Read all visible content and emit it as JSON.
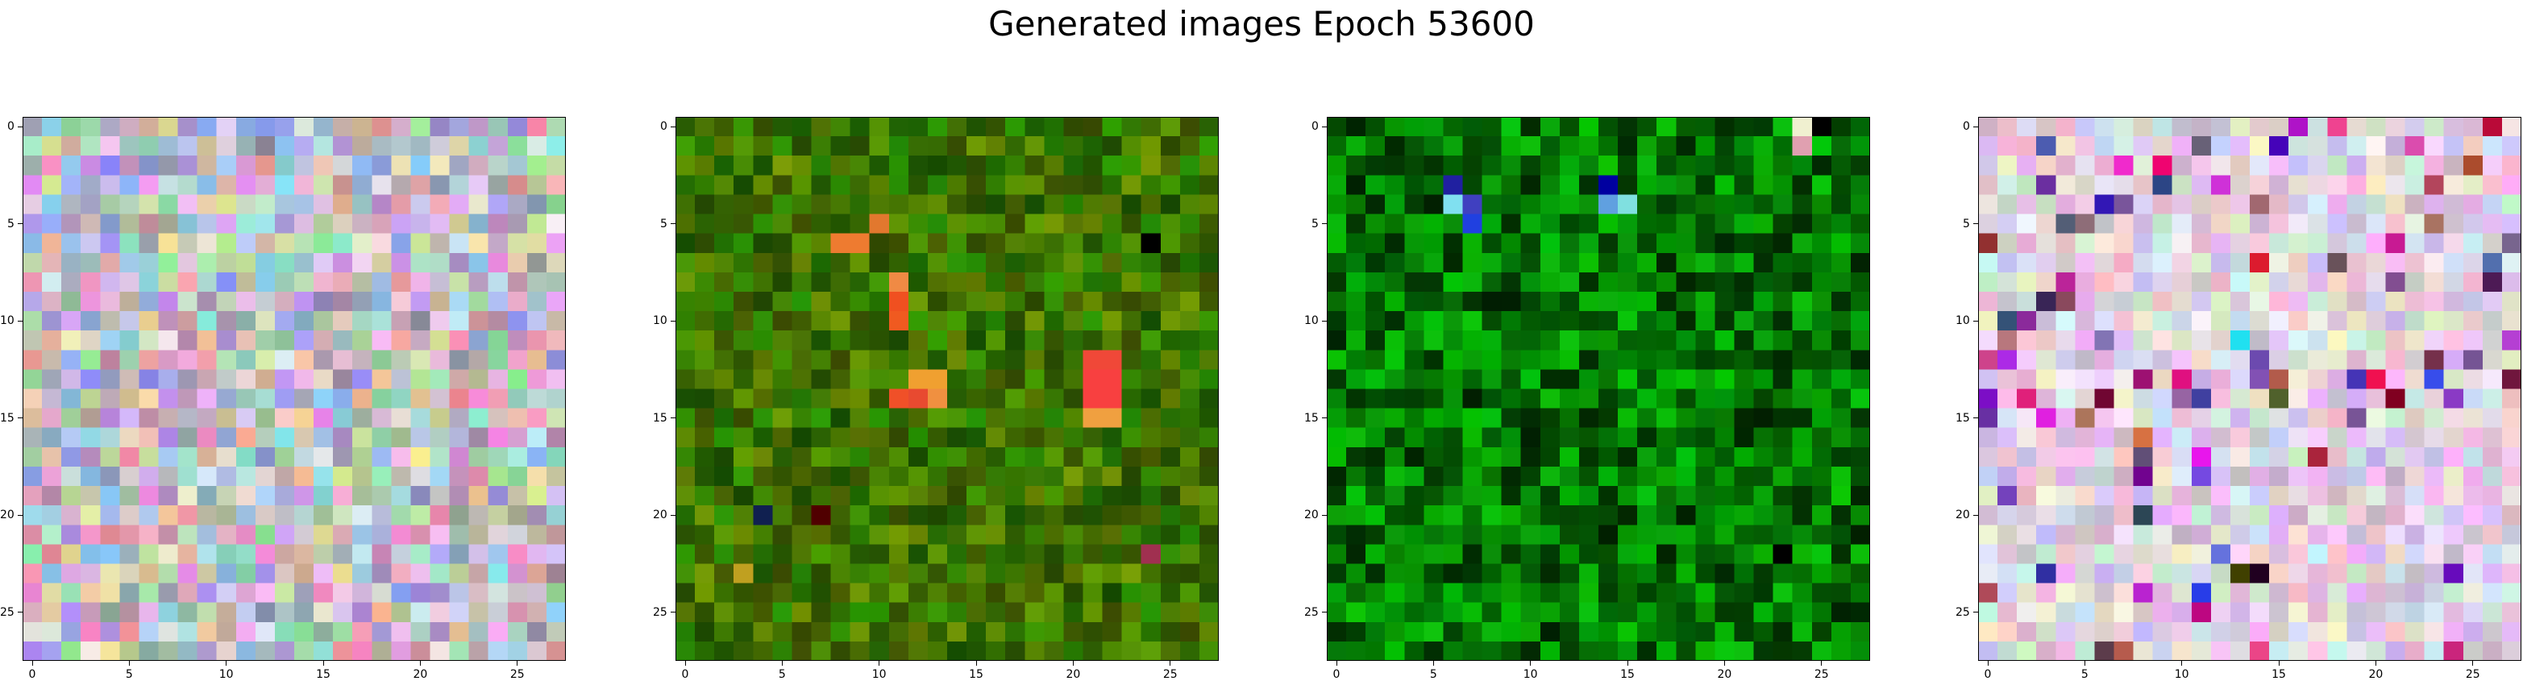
{
  "figure": {
    "title": "Generated images Epoch 53600"
  },
  "chart_data": [
    {
      "type": "heatmap",
      "name": "generated-image-1",
      "grid": [
        28,
        28
      ],
      "xlim": [
        -0.5,
        27.5
      ],
      "ylim": [
        27.5,
        -0.5
      ],
      "xticks": [
        0,
        5,
        10,
        15,
        20,
        25
      ],
      "yticks": [
        0,
        5,
        10,
        15,
        20,
        25
      ],
      "palette": "pastel-noise",
      "base_color": "#b4aac8",
      "seed": 11
    },
    {
      "type": "heatmap",
      "name": "generated-image-2",
      "grid": [
        28,
        28
      ],
      "xlim": [
        -0.5,
        27.5
      ],
      "ylim": [
        27.5,
        -0.5
      ],
      "xticks": [
        0,
        5,
        10,
        15,
        20,
        25
      ],
      "yticks": [
        0,
        5,
        10,
        15,
        20,
        25
      ],
      "palette": "olive-green",
      "base_color": "#3c7a10",
      "seed": 23,
      "highlights": [
        {
          "x": 8,
          "y": 6,
          "color": "#ee7b30"
        },
        {
          "x": 9,
          "y": 6,
          "color": "#ee7b30"
        },
        {
          "x": 10,
          "y": 5,
          "color": "#e2782e"
        },
        {
          "x": 11,
          "y": 8,
          "color": "#f08a44"
        },
        {
          "x": 11,
          "y": 9,
          "color": "#f05020"
        },
        {
          "x": 11,
          "y": 10,
          "color": "#f05a20"
        },
        {
          "x": 12,
          "y": 13,
          "color": "#f0a030"
        },
        {
          "x": 13,
          "y": 13,
          "color": "#f0a030"
        },
        {
          "x": 11,
          "y": 14,
          "color": "#f05028"
        },
        {
          "x": 12,
          "y": 14,
          "color": "#e84a30"
        },
        {
          "x": 13,
          "y": 14,
          "color": "#f09040"
        },
        {
          "x": 21,
          "y": 12,
          "color": "#f04838"
        },
        {
          "x": 22,
          "y": 12,
          "color": "#f04838"
        },
        {
          "x": 21,
          "y": 13,
          "color": "#f84040"
        },
        {
          "x": 22,
          "y": 13,
          "color": "#f84040"
        },
        {
          "x": 21,
          "y": 14,
          "color": "#f84040"
        },
        {
          "x": 22,
          "y": 14,
          "color": "#f84040"
        },
        {
          "x": 21,
          "y": 15,
          "color": "#f0a040"
        },
        {
          "x": 22,
          "y": 15,
          "color": "#f0a040"
        },
        {
          "x": 4,
          "y": 20,
          "color": "#102050"
        },
        {
          "x": 7,
          "y": 20,
          "color": "#500000"
        },
        {
          "x": 3,
          "y": 23,
          "color": "#c0a020"
        },
        {
          "x": 24,
          "y": 22,
          "color": "#a03050"
        },
        {
          "x": 24,
          "y": 6,
          "color": "#000000"
        }
      ]
    },
    {
      "type": "heatmap",
      "name": "generated-image-3",
      "grid": [
        28,
        28
      ],
      "xlim": [
        -0.5,
        27.5
      ],
      "ylim": [
        27.5,
        -0.5
      ],
      "xticks": [
        0,
        5,
        10,
        15,
        20,
        25
      ],
      "yticks": [
        0,
        5,
        10,
        15,
        20,
        25
      ],
      "palette": "deep-green",
      "base_color": "#0a7a0a",
      "seed": 37,
      "highlights": [
        {
          "x": 6,
          "y": 3,
          "color": "#2020a0"
        },
        {
          "x": 6,
          "y": 4,
          "color": "#80e0f0"
        },
        {
          "x": 7,
          "y": 4,
          "color": "#4040c0"
        },
        {
          "x": 7,
          "y": 5,
          "color": "#2040e0"
        },
        {
          "x": 14,
          "y": 3,
          "color": "#0000a0"
        },
        {
          "x": 14,
          "y": 4,
          "color": "#60a0e0"
        },
        {
          "x": 15,
          "y": 4,
          "color": "#80e0e0"
        },
        {
          "x": 24,
          "y": 0,
          "color": "#f0f0d0"
        },
        {
          "x": 24,
          "y": 1,
          "color": "#e0a0b0"
        },
        {
          "x": 25,
          "y": 0,
          "color": "#000000"
        },
        {
          "x": 23,
          "y": 22,
          "color": "#000000"
        }
      ]
    },
    {
      "type": "heatmap",
      "name": "generated-image-4",
      "grid": [
        28,
        28
      ],
      "xlim": [
        -0.5,
        27.5
      ],
      "ylim": [
        27.5,
        -0.5
      ],
      "xticks": [
        0,
        5,
        10,
        15,
        20,
        25
      ],
      "yticks": [
        0,
        5,
        10,
        15,
        20,
        25
      ],
      "palette": "bright-pastel",
      "base_color": "#e0c8e8",
      "seed": 53,
      "highlights": [
        {
          "x": 10,
          "y": 13,
          "color": "#e01080"
        },
        {
          "x": 11,
          "y": 14,
          "color": "#4040a0"
        },
        {
          "x": 2,
          "y": 14,
          "color": "#e0207a"
        },
        {
          "x": 3,
          "y": 15,
          "color": "#e020e0"
        },
        {
          "x": 13,
          "y": 11,
          "color": "#20e0f0"
        },
        {
          "x": 20,
          "y": 13,
          "color": "#f01050"
        },
        {
          "x": 14,
          "y": 23,
          "color": "#200020"
        },
        {
          "x": 13,
          "y": 23,
          "color": "#404000"
        },
        {
          "x": 21,
          "y": 14,
          "color": "#800020"
        }
      ]
    }
  ]
}
